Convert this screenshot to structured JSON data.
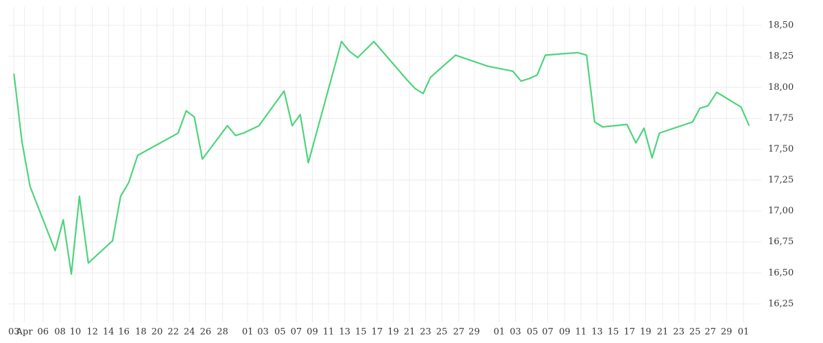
{
  "chart_data": {
    "type": "line",
    "color": "#4cd47a",
    "x": [
      0,
      1.0,
      2.0,
      5.1,
      6.1,
      7.1,
      8.1,
      9.2,
      12.2,
      13.2,
      14.2,
      15.3,
      20.3,
      21.3,
      22.3,
      23.3,
      26.4,
      27.4,
      28.4,
      30.3,
      33.4,
      34.4,
      35.4,
      36.4,
      40.5,
      41.5,
      42.5,
      44.5,
      48.6,
      49.6,
      50.6,
      51.5,
      54.6,
      58.6,
      61.7,
      62.7,
      63.7,
      64.7,
      65.7,
      69.7,
      70.8,
      71.8,
      72.8,
      75.8,
      76.9,
      77.9,
      78.9,
      79.8,
      83.9,
      84.8,
      85.8,
      86.9,
      89.9,
      90.9
    ],
    "values": [
      18.11,
      17.56,
      17.2,
      16.68,
      16.93,
      16.49,
      17.12,
      16.58,
      16.76,
      17.12,
      17.23,
      17.45,
      17.63,
      17.81,
      17.76,
      17.42,
      17.69,
      17.61,
      17.63,
      17.69,
      17.97,
      17.69,
      17.78,
      17.39,
      18.37,
      18.29,
      18.24,
      18.37,
      18.06,
      17.99,
      17.95,
      18.08,
      18.26,
      18.17,
      18.13,
      18.05,
      18.07,
      18.1,
      18.26,
      18.28,
      18.26,
      17.72,
      17.68,
      17.7,
      17.55,
      17.67,
      17.43,
      17.63,
      17.72,
      17.83,
      17.85,
      17.96,
      17.84,
      17.69
    ],
    "xlim": [
      -0.7,
      92.4
    ],
    "xticks": [
      {
        "value": 0,
        "label": "03"
      },
      {
        "value": 1.3,
        "label": "Apr"
      },
      {
        "value": 3.6,
        "label": "06"
      },
      {
        "value": 5.7,
        "label": "08"
      },
      {
        "value": 7.6,
        "label": "10"
      },
      {
        "value": 9.7,
        "label": "12"
      },
      {
        "value": 11.7,
        "label": "14"
      },
      {
        "value": 13.6,
        "label": "16"
      },
      {
        "value": 15.7,
        "label": "18"
      },
      {
        "value": 17.7,
        "label": "20"
      },
      {
        "value": 19.7,
        "label": "22"
      },
      {
        "value": 21.7,
        "label": "24"
      },
      {
        "value": 23.7,
        "label": "26"
      },
      {
        "value": 25.8,
        "label": "28"
      },
      {
        "value": 28.9,
        "label": "01"
      },
      {
        "value": 30.8,
        "label": "03"
      },
      {
        "value": 32.9,
        "label": "05"
      },
      {
        "value": 34.9,
        "label": "07"
      },
      {
        "value": 36.9,
        "label": "09"
      },
      {
        "value": 38.9,
        "label": "11"
      },
      {
        "value": 40.9,
        "label": "13"
      },
      {
        "value": 42.9,
        "label": "15"
      },
      {
        "value": 44.9,
        "label": "17"
      },
      {
        "value": 46.9,
        "label": "19"
      },
      {
        "value": 48.9,
        "label": "21"
      },
      {
        "value": 50.9,
        "label": "23"
      },
      {
        "value": 52.9,
        "label": "25"
      },
      {
        "value": 55.0,
        "label": "27"
      },
      {
        "value": 56.9,
        "label": "29"
      },
      {
        "value": 60.0,
        "label": "01"
      },
      {
        "value": 62.0,
        "label": "03"
      },
      {
        "value": 64.1,
        "label": "05"
      },
      {
        "value": 66.0,
        "label": "07"
      },
      {
        "value": 68.1,
        "label": "09"
      },
      {
        "value": 70.1,
        "label": "11"
      },
      {
        "value": 72.1,
        "label": "13"
      },
      {
        "value": 74.1,
        "label": "15"
      },
      {
        "value": 76.1,
        "label": "17"
      },
      {
        "value": 78.1,
        "label": "19"
      },
      {
        "value": 80.2,
        "label": "21"
      },
      {
        "value": 82.2,
        "label": "23"
      },
      {
        "value": 84.2,
        "label": "25"
      },
      {
        "value": 86.1,
        "label": "27"
      },
      {
        "value": 88.1,
        "label": "29"
      },
      {
        "value": 90.2,
        "label": "01"
      }
    ],
    "ylim": [
      16.1,
      18.65
    ],
    "yticks": [
      {
        "value": 16.25,
        "label": "16,25"
      },
      {
        "value": 16.5,
        "label": "16,50"
      },
      {
        "value": 16.75,
        "label": "16,75"
      },
      {
        "value": 17.0,
        "label": "17,00"
      },
      {
        "value": 17.25,
        "label": "17,25"
      },
      {
        "value": 17.5,
        "label": "17,50"
      },
      {
        "value": 17.75,
        "label": "17,75"
      },
      {
        "value": 18.0,
        "label": "18,00"
      },
      {
        "value": 18.25,
        "label": "18,25"
      },
      {
        "value": 18.5,
        "label": "18,50"
      }
    ],
    "grid": true
  }
}
